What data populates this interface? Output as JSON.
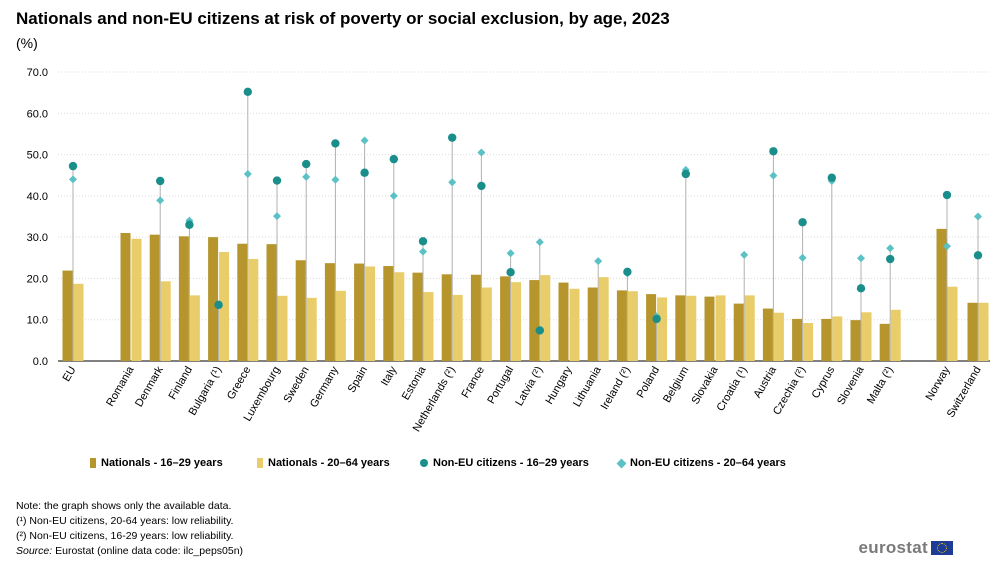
{
  "title": "Nationals and non-EU citizens at risk of poverty or social exclusion, by age, 2023",
  "subtitle": "(%)",
  "chart_data": {
    "type": "bar",
    "y_ticks": [
      "0.0",
      "10.0",
      "20.0",
      "30.0",
      "40.0",
      "50.0",
      "60.0",
      "70.0"
    ],
    "ylim": [
      0,
      70
    ],
    "grid": true,
    "legend_position": "bottom",
    "categories": [
      "EU",
      "Romania",
      "Denmark",
      "Finland",
      "Bulgaria (¹)",
      "Greece",
      "Luxembourg",
      "Sweden",
      "Germany",
      "Spain",
      "Italy",
      "Estonia",
      "Netherlands (²)",
      "France",
      "Portugal",
      "Latvia (²)",
      "Hungary",
      "Lithuania",
      "Ireland (²)",
      "Poland",
      "Belgium",
      "Slovakia",
      "Croatia (¹)",
      "Austria",
      "Czechia (²)",
      "Cyprus",
      "Slovenia",
      "Malta (²)",
      "Norway",
      "Switzerland"
    ],
    "series": [
      {
        "name": "Nationals - 16–29 years",
        "kind": "bar",
        "color": "#b5952c",
        "values": [
          21.9,
          null,
          30.6,
          30.2,
          30.0,
          28.4,
          28.3,
          24.4,
          23.7,
          23.6,
          23.0,
          21.4,
          21.0,
          20.9,
          20.5,
          19.6,
          19.0,
          17.8,
          17.1,
          16.2,
          15.9,
          15.6,
          13.9,
          12.7,
          10.2,
          10.2,
          9.9,
          9.0,
          32.0,
          14.1
        ]
      },
      {
        "name": "Nationals - 20–64 years",
        "kind": "bar",
        "color": "#e8cd6a",
        "values": [
          18.7,
          null,
          19.3,
          15.9,
          26.4,
          24.7,
          15.8,
          15.3,
          17.0,
          22.9,
          21.5,
          16.7,
          16.0,
          17.8,
          19.1,
          20.8,
          17.5,
          20.3,
          16.9,
          15.4,
          15.8,
          15.9,
          15.9,
          11.7,
          9.2,
          10.8,
          11.8,
          12.4,
          18.0,
          14.1
        ]
      },
      {
        "name": "Non-EU citizens - 16–29 years",
        "kind": "dot",
        "color": "#1a8e8a",
        "values": [
          47.2,
          null,
          43.6,
          33.0,
          13.6,
          65.2,
          43.7,
          47.7,
          52.7,
          45.6,
          48.9,
          29.0,
          54.1,
          42.4,
          21.5,
          7.4,
          null,
          null,
          21.6,
          10.2,
          45.3,
          null,
          null,
          50.8,
          33.6,
          44.4,
          17.6,
          24.7,
          40.2,
          25.6
        ]
      },
      {
        "name": "Non-EU citizens - 20–64 years",
        "kind": "diamond",
        "color": "#5bc1c4",
        "values": [
          44.0,
          null,
          38.9,
          34.0,
          13.6,
          45.3,
          35.1,
          44.6,
          43.9,
          53.4,
          40.0,
          26.5,
          43.3,
          50.5,
          26.1,
          28.8,
          null,
          24.2,
          21.2,
          10.8,
          46.3,
          null,
          25.7,
          44.9,
          25.0,
          43.6,
          24.9,
          27.3,
          27.8,
          35.0
        ]
      }
    ],
    "romania_values": {
      "nationals_16_29": 31.0,
      "nationals_20_64": 29.6
    }
  },
  "notes": {
    "note": "Note: the graph shows only the available data.",
    "n1": "(¹) Non-EU citizens, 20-64 years: low reliability.",
    "n2": "(²) Non-EU citizens, 16-29 years: low reliability.",
    "source_label": "Source:",
    "source_text": " Eurostat (online data code: ilc_peps05n)"
  },
  "logo_text": "eurostat",
  "logo_icon": "eu-flag-icon"
}
